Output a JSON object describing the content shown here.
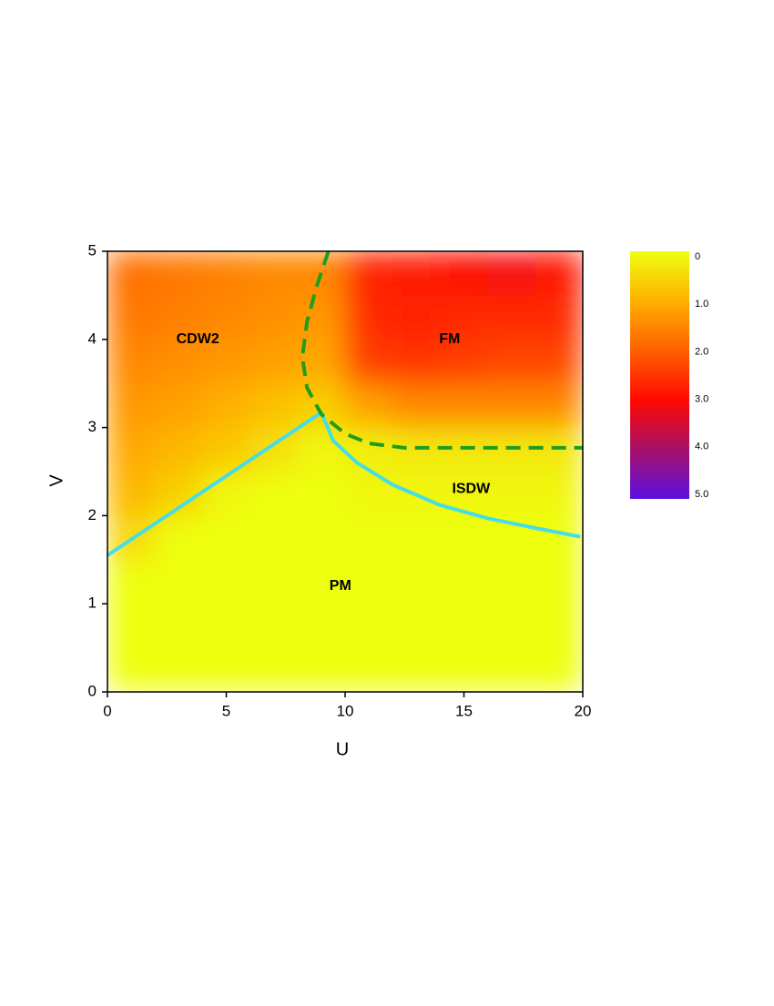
{
  "chart_data": {
    "type": "heatmap",
    "xlabel": "U",
    "ylabel": "V",
    "xlim": [
      0,
      20
    ],
    "ylim": [
      0,
      5
    ],
    "xticks": [
      0,
      5,
      10,
      15,
      20
    ],
    "yticks": [
      0,
      1,
      2,
      3,
      4,
      5
    ],
    "heatmap": {
      "x_edges": [
        0,
        2,
        4,
        6,
        8,
        10,
        12,
        14,
        16,
        18,
        20
      ],
      "y_edges": [
        0,
        0.5,
        1,
        1.5,
        2,
        2.5,
        3,
        3.5,
        4,
        4.5,
        5
      ],
      "z": [
        [
          0,
          0,
          0,
          0,
          0,
          0,
          0,
          0,
          0,
          0
        ],
        [
          0,
          0,
          0,
          0,
          0,
          0,
          0,
          0,
          0,
          0
        ],
        [
          0,
          0,
          0,
          0,
          0,
          0,
          0,
          0,
          0,
          0
        ],
        [
          0.5,
          0,
          0,
          0,
          0,
          0,
          0,
          0,
          0,
          0
        ],
        [
          0.9,
          0.6,
          0.1,
          0,
          0,
          0.1,
          0.1,
          0.1,
          0.1,
          0.1
        ],
        [
          1.1,
          0.9,
          0.7,
          0.4,
          0.1,
          0.2,
          0.3,
          0.3,
          0.3,
          0.3
        ],
        [
          1.3,
          1.2,
          1.0,
          0.8,
          0.6,
          1.2,
          1.5,
          1.5,
          1.5,
          1.5
        ],
        [
          1.5,
          1.4,
          1.3,
          1.2,
          1.1,
          2.4,
          2.5,
          2.4,
          2.3,
          2.3
        ],
        [
          1.7,
          1.6,
          1.5,
          1.4,
          1.3,
          2.6,
          2.7,
          2.6,
          2.6,
          2.6
        ],
        [
          1.8,
          1.7,
          1.6,
          1.5,
          1.5,
          2.7,
          2.8,
          3.0,
          3.1,
          2.9
        ]
      ]
    },
    "colorscale": [
      [
        0,
        "#eeff10"
      ],
      [
        1,
        "#ffb000"
      ],
      [
        2,
        "#ff6000"
      ],
      [
        3,
        "#ff0a00"
      ],
      [
        4,
        "#a8106a"
      ],
      [
        5,
        "#5a10e0"
      ]
    ],
    "zlim": [
      0,
      5
    ],
    "zticks": [
      0,
      {
        "value": 1,
        "label": "1.0"
      },
      {
        "value": 2,
        "label": "2.0"
      },
      {
        "value": 3,
        "label": "3.0"
      },
      {
        "value": 4,
        "label": "4.0"
      },
      {
        "value": 5,
        "label": "5.0"
      }
    ],
    "series": [
      {
        "color": "#44dde8",
        "dash": false,
        "x": [
          0,
          9,
          9.5,
          10.5,
          12,
          14,
          16,
          18,
          19.9
        ],
        "y": [
          1.55,
          3.17,
          2.85,
          2.6,
          2.35,
          2.12,
          1.97,
          1.86,
          1.76
        ]
      },
      {
        "color": "#1e9e1e",
        "dash": true,
        "x": [
          9.3,
          8.8,
          8.4,
          8.2,
          8.4,
          9.0,
          10,
          11,
          12.5,
          16,
          20
        ],
        "y": [
          5,
          4.6,
          4.2,
          3.8,
          3.45,
          3.15,
          2.93,
          2.82,
          2.77,
          2.77,
          2.77
        ]
      }
    ],
    "annotations": [
      {
        "text": "CDW2",
        "x": 3.8,
        "y": 4
      },
      {
        "text": "FM",
        "x": 14.4,
        "y": 4
      },
      {
        "text": "ISDW",
        "x": 15.3,
        "y": 2.3
      },
      {
        "text": "PM",
        "x": 9.8,
        "y": 1.2
      }
    ]
  }
}
